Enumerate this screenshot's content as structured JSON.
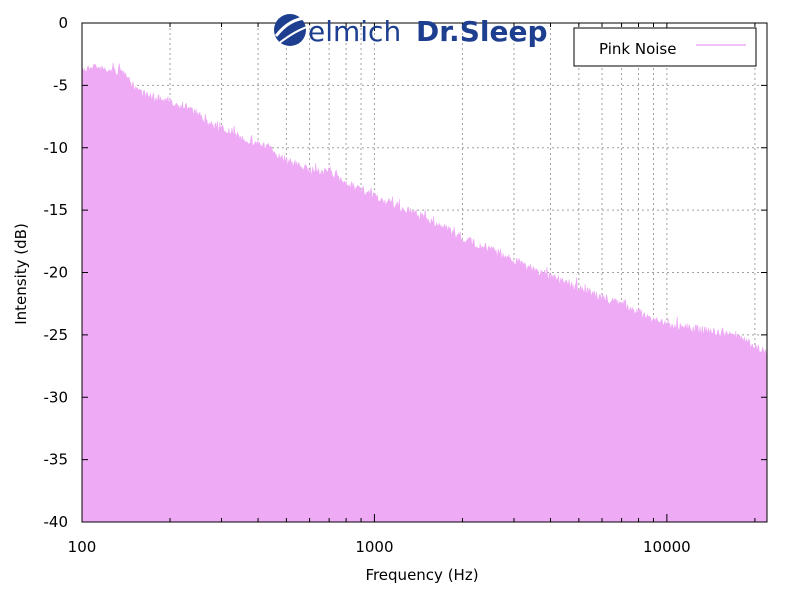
{
  "brand": {
    "name": "elmich",
    "product": "Dr.Sleep",
    "color": "#1e3f8f"
  },
  "chart_data": {
    "type": "area",
    "title": "",
    "xlabel": "Frequency (Hz)",
    "ylabel": "Intensity (dB)",
    "xscale": "log",
    "xlim": [
      100,
      22000
    ],
    "ylim": [
      -40,
      0
    ],
    "x_ticks": [
      100,
      1000,
      10000
    ],
    "x_tick_labels": [
      "100",
      "1000",
      "10000"
    ],
    "y_ticks": [
      0,
      -5,
      -10,
      -15,
      -20,
      -25,
      -30,
      -35,
      -40
    ],
    "y_tick_labels": [
      "0",
      "-5",
      "-10",
      "-15",
      "-20",
      "-25",
      "-30",
      "-35",
      "-40"
    ],
    "grid": true,
    "legend_position": "top-right",
    "series": [
      {
        "name": "Pink Noise",
        "color": "#eeaaf5",
        "x": [
          100,
          110,
          125,
          135,
          150,
          170,
          200,
          230,
          270,
          300,
          350,
          400,
          450,
          500,
          600,
          700,
          800,
          900,
          1000,
          1200,
          1500,
          1800,
          2000,
          2500,
          3000,
          3500,
          4000,
          5000,
          6000,
          7000,
          8000,
          10000,
          12000,
          15000,
          18000,
          22000
        ],
        "values": [
          -3.5,
          -3.1,
          -3.6,
          -3.5,
          -4.7,
          -5.6,
          -6.0,
          -6.4,
          -7.7,
          -8.1,
          -8.9,
          -9.3,
          -9.9,
          -10.7,
          -11.5,
          -11.6,
          -12.5,
          -13.1,
          -13.6,
          -14.4,
          -15.3,
          -16.3,
          -17.0,
          -17.8,
          -18.7,
          -19.4,
          -20.0,
          -20.9,
          -21.7,
          -22.2,
          -22.9,
          -23.8,
          -24.1,
          -24.5,
          -24.9,
          -26.2
        ]
      }
    ]
  }
}
